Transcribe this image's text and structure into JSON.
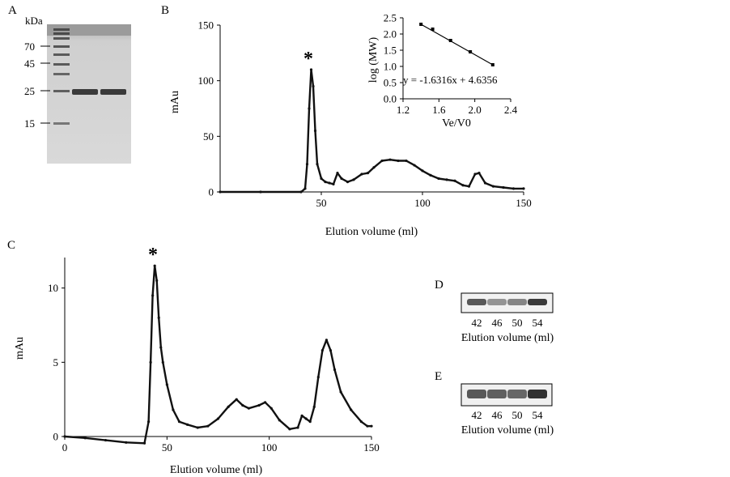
{
  "panels": {
    "A": {
      "letter": "A",
      "unit": "kDa",
      "markers": [
        "70",
        "45",
        "25",
        "15"
      ]
    },
    "B": {
      "letter": "B",
      "peak_mark": "*"
    },
    "C": {
      "letter": "C",
      "peak_mark": "*"
    },
    "D": {
      "letter": "D",
      "lanes": [
        "42",
        "46",
        "50",
        "54"
      ],
      "xlabel": "Elution volume (ml)",
      "band_intensity": [
        0.75,
        0.35,
        0.45,
        0.95
      ]
    },
    "E": {
      "letter": "E",
      "lanes": [
        "42",
        "46",
        "50",
        "54"
      ],
      "xlabel": "Elution volume (ml)",
      "band_intensity": [
        0.75,
        0.7,
        0.65,
        1.0
      ]
    }
  },
  "chart_data": [
    {
      "id": "B-chromatogram",
      "type": "line",
      "xlabel": "Elution volume (ml)",
      "ylabel": "mAu",
      "xlim": [
        0,
        150
      ],
      "ylim": [
        0,
        150
      ],
      "xticks": [
        "50",
        "100",
        "150"
      ],
      "yticks": [
        "0",
        "50",
        "100",
        "150"
      ],
      "x": [
        0,
        20,
        40,
        42,
        43,
        44,
        45,
        46,
        47,
        48,
        50,
        52,
        54,
        56,
        58,
        60,
        63,
        66,
        70,
        73,
        76,
        80,
        84,
        88,
        92,
        96,
        100,
        104,
        108,
        112,
        116,
        120,
        123,
        126,
        128,
        131,
        135,
        140,
        145,
        150
      ],
      "y": [
        0,
        0,
        0,
        3,
        25,
        75,
        110,
        95,
        55,
        25,
        12,
        9,
        8,
        7,
        17,
        12,
        9,
        11,
        16,
        17,
        22,
        28,
        29,
        28,
        28,
        24,
        19,
        15,
        12,
        11,
        10,
        6,
        5,
        16,
        17,
        8,
        5,
        4,
        3,
        3
      ]
    },
    {
      "id": "B-inset-calibration",
      "type": "line",
      "xlabel": "Ve/V0",
      "ylabel": "log (MW)",
      "xlim": [
        1.2,
        2.4
      ],
      "ylim": [
        0.0,
        2.5
      ],
      "xticks": [
        "1.2",
        "1.6",
        "2.0",
        "2.4"
      ],
      "yticks": [
        "0.0",
        "0.5",
        "1.0",
        "1.5",
        "2.0",
        "2.5"
      ],
      "x": [
        1.4,
        1.53,
        1.73,
        1.95,
        2.2
      ],
      "y": [
        2.3,
        2.15,
        1.8,
        1.45,
        1.05
      ],
      "annotation": "y = -1.6316x + 4.6356"
    },
    {
      "id": "C-chromatogram",
      "type": "line",
      "xlabel": "Elution volume (ml)",
      "ylabel": "mAu",
      "xlim": [
        0,
        150
      ],
      "ylim": [
        0,
        12
      ],
      "xticks": [
        "0",
        "50",
        "100",
        "150"
      ],
      "yticks": [
        "0",
        "5",
        "10"
      ],
      "x": [
        0,
        10,
        20,
        30,
        39,
        41,
        42,
        43,
        44,
        45,
        46,
        47,
        48,
        50,
        53,
        56,
        60,
        65,
        70,
        75,
        80,
        84,
        87,
        90,
        95,
        98,
        101,
        105,
        110,
        114,
        116,
        118,
        120,
        122,
        124,
        126,
        128,
        130,
        132,
        135,
        140,
        145,
        148,
        150
      ],
      "y": [
        0.0,
        -0.1,
        -0.25,
        -0.4,
        -0.45,
        1.0,
        5.0,
        9.5,
        11.5,
        10.5,
        8.0,
        6.0,
        5.0,
        3.5,
        1.8,
        1.0,
        0.8,
        0.6,
        0.7,
        1.2,
        2.0,
        2.5,
        2.1,
        1.9,
        2.1,
        2.3,
        1.9,
        1.1,
        0.5,
        0.6,
        1.4,
        1.2,
        1.0,
        2.0,
        4.0,
        5.8,
        6.5,
        5.8,
        4.5,
        3.0,
        1.8,
        1.0,
        0.7,
        0.7
      ]
    }
  ]
}
